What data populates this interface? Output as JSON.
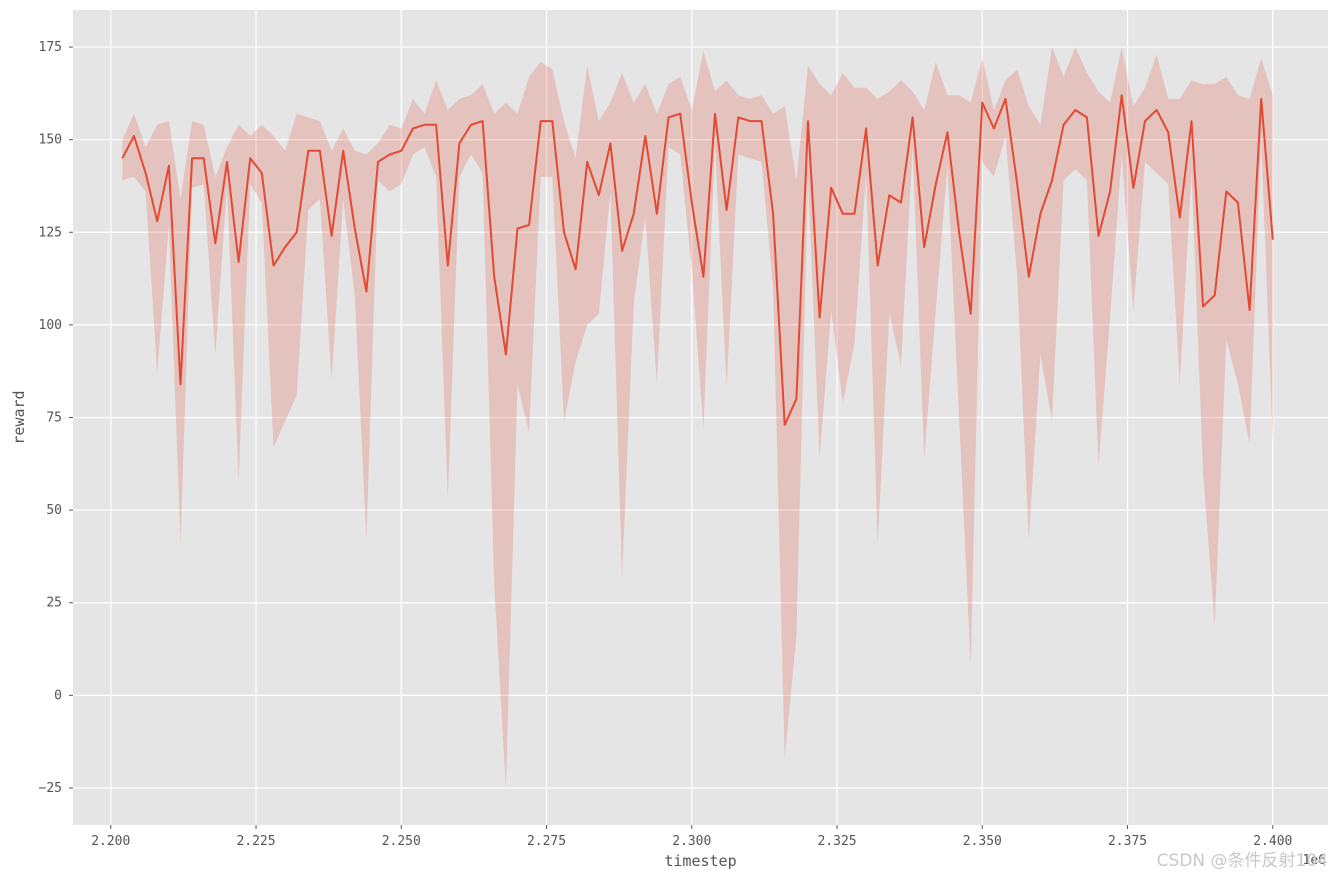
{
  "watermark": "CSDN @条件反射104",
  "colors": {
    "background": "#e5e5e5",
    "grid": "#ffffff",
    "line": "#e24a33",
    "band": "#e24a33",
    "text": "#555555"
  },
  "chart_data": {
    "type": "line",
    "xlabel": "timestep",
    "ylabel": "reward",
    "x_offset_text": "1e6",
    "xlim": [
      2.1935,
      2.4095
    ],
    "ylim": [
      -35,
      185
    ],
    "x_ticks": [
      2.2,
      2.225,
      2.25,
      2.275,
      2.3,
      2.325,
      2.35,
      2.375,
      2.4
    ],
    "x_tick_labels": [
      "2.200",
      "2.225",
      "2.250",
      "2.275",
      "2.300",
      "2.325",
      "2.350",
      "2.375",
      "2.400"
    ],
    "y_ticks": [
      -25,
      0,
      25,
      50,
      75,
      100,
      125,
      150,
      175
    ],
    "y_tick_labels": [
      "−25",
      "0",
      "25",
      "50",
      "75",
      "100",
      "125",
      "150",
      "175"
    ],
    "grid": true,
    "confidence_band": true,
    "series": [
      {
        "x": [
          2.202,
          2.204,
          2.206,
          2.208,
          2.21,
          2.212,
          2.214,
          2.216,
          2.218,
          2.22,
          2.222,
          2.224,
          2.226,
          2.228,
          2.23,
          2.232,
          2.234,
          2.236,
          2.238,
          2.24,
          2.242,
          2.244,
          2.246,
          2.248,
          2.25,
          2.252,
          2.254,
          2.256,
          2.258,
          2.26,
          2.262,
          2.264,
          2.266,
          2.268,
          2.27,
          2.272,
          2.274,
          2.276,
          2.278,
          2.28,
          2.282,
          2.284,
          2.286,
          2.288,
          2.29,
          2.292,
          2.294,
          2.296,
          2.298,
          2.3,
          2.302,
          2.304,
          2.306,
          2.308,
          2.31,
          2.312,
          2.314,
          2.316,
          2.318,
          2.32,
          2.322,
          2.324,
          2.326,
          2.328,
          2.33,
          2.332,
          2.334,
          2.336,
          2.338,
          2.34,
          2.342,
          2.344,
          2.346,
          2.348,
          2.35,
          2.352,
          2.354,
          2.356,
          2.358,
          2.36,
          2.362,
          2.364,
          2.366,
          2.368,
          2.37,
          2.372,
          2.374,
          2.376,
          2.378,
          2.38,
          2.382,
          2.384,
          2.386,
          2.388,
          2.39,
          2.392,
          2.394,
          2.396,
          2.398,
          2.4
        ],
        "y": [
          145,
          151,
          141,
          128,
          143,
          84,
          145,
          145,
          122,
          144,
          117,
          145,
          141,
          116,
          121,
          125,
          147,
          147,
          124,
          147,
          126,
          109,
          144,
          146,
          147,
          153,
          154,
          154,
          116,
          149,
          154,
          155,
          113,
          92,
          126,
          127,
          155,
          155,
          125,
          115,
          144,
          135,
          149,
          120,
          130,
          151,
          130,
          156,
          157,
          133,
          113,
          157,
          131,
          156,
          155,
          155,
          130,
          73,
          80,
          155,
          102,
          137,
          130,
          130,
          153,
          116,
          135,
          133,
          156,
          121,
          138,
          152,
          125,
          103,
          160,
          153,
          161,
          138,
          113,
          130,
          139,
          154,
          158,
          156,
          124,
          136,
          162,
          137,
          155,
          158,
          152,
          129,
          155,
          105,
          108,
          136,
          133,
          104,
          161,
          123
        ],
        "upper": [
          150,
          157,
          148,
          154,
          155,
          134,
          155,
          154,
          140,
          148,
          154,
          151,
          154,
          151,
          147,
          157,
          156,
          155,
          147,
          153,
          147,
          146,
          149,
          154,
          153,
          161,
          157,
          166,
          158,
          161,
          162,
          165,
          157,
          160,
          157,
          167,
          171,
          169,
          155,
          145,
          170,
          155,
          160,
          168,
          160,
          165,
          157,
          165,
          167,
          158,
          174,
          163,
          166,
          162,
          161,
          162,
          157,
          159,
          139,
          170,
          165,
          162,
          168,
          164,
          164,
          161,
          163,
          166,
          163,
          158,
          171,
          162,
          162,
          160,
          172,
          158,
          166,
          169,
          159,
          154,
          175,
          167,
          175,
          168,
          163,
          160,
          175,
          159,
          164,
          173,
          161,
          161,
          166,
          165,
          165,
          167,
          162,
          161,
          172,
          162
        ],
        "lower": [
          139,
          140,
          136,
          87,
          127,
          41,
          137,
          138,
          92,
          138,
          58,
          138,
          133,
          67,
          74,
          81,
          131,
          134,
          85,
          134,
          108,
          42,
          139,
          136,
          138,
          146,
          148,
          140,
          53,
          140,
          146,
          141,
          30,
          -25,
          84,
          71,
          140,
          140,
          74,
          90,
          100,
          103,
          136,
          32,
          106,
          129,
          84,
          148,
          146,
          115,
          72,
          149,
          83,
          146,
          145,
          144,
          110,
          -17,
          16,
          140,
          64,
          104,
          79,
          95,
          141,
          41,
          103,
          89,
          148,
          64,
          104,
          143,
          75,
          8,
          144,
          140,
          151,
          113,
          42,
          92,
          74,
          139,
          142,
          139,
          62,
          102,
          146,
          104,
          144,
          141,
          138,
          84,
          141,
          60,
          19,
          96,
          84,
          68,
          150,
          68
        ]
      }
    ]
  }
}
